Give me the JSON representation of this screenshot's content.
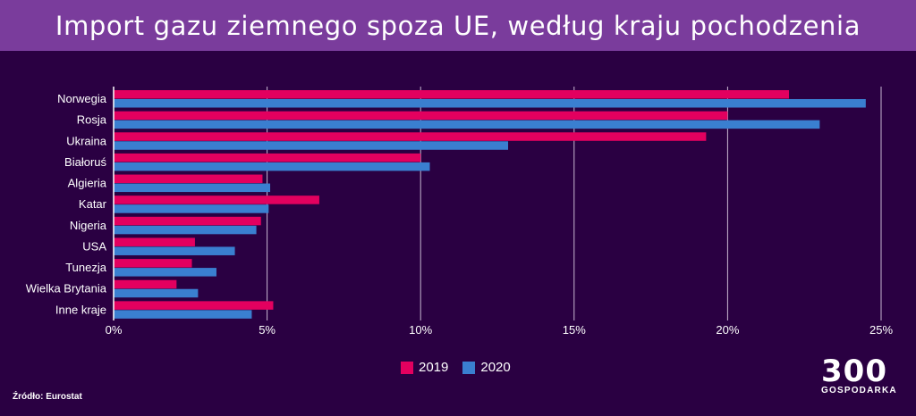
{
  "title": "Import gazu ziemnego spoza UE, według kraju pochodzenia",
  "source": "Źródło: Eurostat",
  "logo": {
    "number": "300",
    "word": "GOSPODARKA"
  },
  "colors": {
    "s2019": "#e3005f",
    "s2020": "#3a7fd0",
    "grid": "#c8b8d2",
    "background": "#2a0042",
    "header": "#7a3c9c"
  },
  "chart_data": {
    "type": "bar",
    "orientation": "horizontal",
    "categories": [
      "Norwegia",
      "Rosja",
      "Ukraina",
      "Białoruś",
      "Algieria",
      "Katar",
      "Nigeria",
      "USA",
      "Tunezja",
      "Wielka Brytania",
      "Inne kraje"
    ],
    "series": [
      {
        "name": "2019",
        "values": [
          22.0,
          20.0,
          19.3,
          10.0,
          4.85,
          6.7,
          4.8,
          2.65,
          2.55,
          2.05,
          5.2
        ]
      },
      {
        "name": "2020",
        "values": [
          24.5,
          23.0,
          12.85,
          10.3,
          5.1,
          5.05,
          4.65,
          3.95,
          3.35,
          2.75,
          4.5
        ]
      }
    ],
    "xticks": [
      "0%",
      "5%",
      "10%",
      "15%",
      "20%",
      "25%"
    ],
    "xlim": [
      0,
      25
    ],
    "grid": true,
    "legend": "bottom-center"
  }
}
